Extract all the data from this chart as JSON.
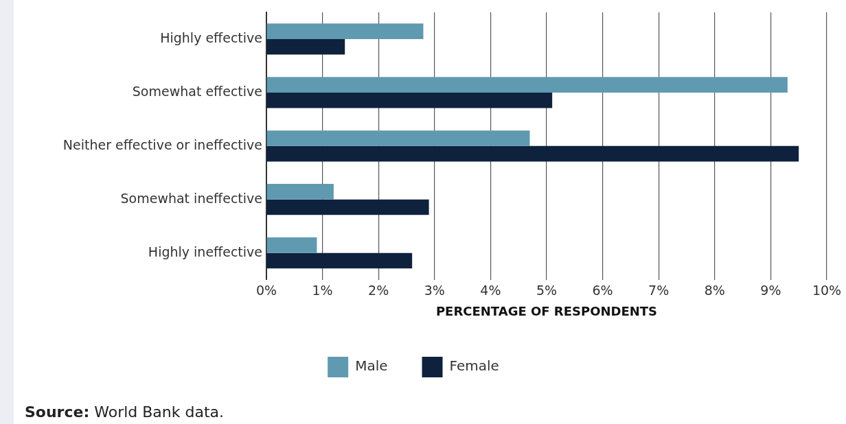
{
  "chart_data": {
    "type": "bar",
    "orientation": "horizontal",
    "categories": [
      "Highly effective",
      "Somewhat effective",
      "Neither effective or ineffective",
      "Somewhat ineffective",
      "Highly ineffective"
    ],
    "series": [
      {
        "name": "Male",
        "color": "#5f9ab1",
        "values": [
          2.8,
          9.3,
          4.7,
          1.2,
          0.9
        ]
      },
      {
        "name": "Female",
        "color": "#0e223d",
        "values": [
          1.4,
          5.1,
          9.5,
          2.9,
          2.6
        ]
      }
    ],
    "xlim": [
      0,
      10
    ],
    "xticks": [
      {
        "value": 0,
        "label": "0%"
      },
      {
        "value": 1,
        "label": "1%"
      },
      {
        "value": 2,
        "label": "2%"
      },
      {
        "value": 3,
        "label": "3%"
      },
      {
        "value": 4,
        "label": "4%"
      },
      {
        "value": 5,
        "label": "5%"
      },
      {
        "value": 6,
        "label": "6%"
      },
      {
        "value": 7,
        "label": "7%"
      },
      {
        "value": 8,
        "label": "8%"
      },
      {
        "value": 9,
        "label": "9%"
      },
      {
        "value": 10,
        "label": "10%"
      }
    ],
    "xlabel": "PERCENTAGE OF RESPONDENTS",
    "grid": "x",
    "legend": "bottom",
    "annotations": [
      "Source: World Bank data."
    ]
  }
}
